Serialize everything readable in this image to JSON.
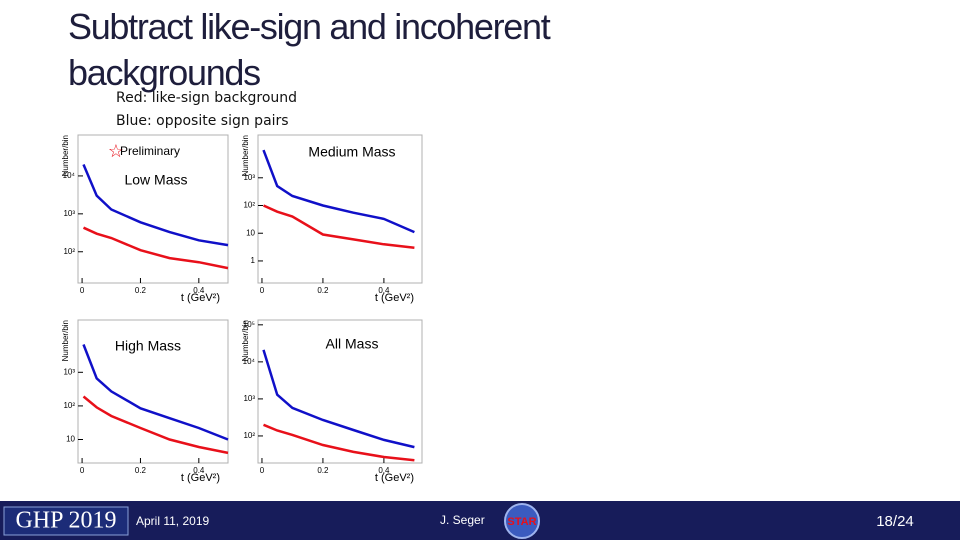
{
  "header": {
    "title": "Subtract like-sign and incoherent backgrounds"
  },
  "notes": [
    "Red:  like-sign background",
    "Blue: opposite sign pairs"
  ],
  "chart_data": [
    {
      "type": "line",
      "title": "Low Mass",
      "annotation": "Preliminary",
      "log_y": true,
      "xlabel": "t (GeV²)",
      "ylabel": "Number/bin",
      "x": [
        0.005,
        0.05,
        0.1,
        0.2,
        0.3,
        0.4,
        0.5
      ],
      "xlim": [
        -0.014,
        0.5
      ],
      "xticks": [
        0,
        0.2,
        0.4
      ],
      "ylim": [
        15,
        120000
      ],
      "yticks": [
        {
          "value": 100,
          "label": "10²"
        },
        {
          "value": 1000,
          "label": "10³"
        },
        {
          "value": 10000,
          "label": "10⁴"
        }
      ],
      "series": [
        {
          "color": "#e8101a",
          "values": [
            430,
            300,
            230,
            110,
            68,
            53,
            37
          ]
        },
        {
          "color": "#1010c8",
          "values": [
            20000,
            3000,
            1300,
            600,
            330,
            200,
            150
          ]
        }
      ]
    },
    {
      "type": "line",
      "title": "Medium Mass",
      "log_y": true,
      "xlabel": "t (GeV²)",
      "ylabel": "Number/bin",
      "x": [
        0.005,
        0.05,
        0.1,
        0.2,
        0.3,
        0.4,
        0.5
      ],
      "xlim": [
        -0.013,
        0.525
      ],
      "xticks": [
        0,
        0.2,
        0.4
      ],
      "ylim": [
        0.16,
        35000
      ],
      "yticks": [
        1,
        10,
        {
          "value": 100,
          "label": "10²"
        },
        {
          "value": 1000,
          "label": "10³"
        }
      ],
      "series": [
        {
          "color": "#e8101a",
          "values": [
            100,
            60,
            40,
            9,
            6,
            4,
            3
          ]
        },
        {
          "color": "#1010c8",
          "values": [
            10000,
            500,
            220,
            100,
            55,
            33,
            11
          ]
        }
      ]
    },
    {
      "type": "line",
      "title": "High Mass",
      "log_y": true,
      "xlabel": "t (GeV²)",
      "ylabel": "Number/bin",
      "x": [
        0.005,
        0.05,
        0.1,
        0.2,
        0.3,
        0.4,
        0.5
      ],
      "xlim": [
        -0.014,
        0.5
      ],
      "xticks": [
        0,
        0.2,
        0.4
      ],
      "ylim": [
        2,
        36000
      ],
      "yticks": [
        10,
        {
          "value": 100,
          "label": "10²"
        },
        {
          "value": 1000,
          "label": "10³"
        }
      ],
      "series": [
        {
          "color": "#e8101a",
          "values": [
            190,
            90,
            50,
            22,
            10,
            6,
            4
          ]
        },
        {
          "color": "#1010c8",
          "values": [
            6700,
            660,
            270,
            85,
            43,
            22,
            10
          ]
        }
      ]
    },
    {
      "type": "line",
      "title": "All Mass",
      "log_y": true,
      "xlabel": "t (GeV²)",
      "ylabel": "Number/bin",
      "x": [
        0.005,
        0.05,
        0.1,
        0.2,
        0.3,
        0.4,
        0.5
      ],
      "xlim": [
        -0.013,
        0.525
      ],
      "xticks": [
        0,
        0.2,
        0.4
      ],
      "ylim": [
        18.6,
        135000
      ],
      "yticks": [
        {
          "value": 100,
          "label": "10²"
        },
        {
          "value": 1000,
          "label": "10³"
        },
        {
          "value": 10000,
          "label": "10⁴"
        },
        {
          "value": 100000,
          "label": "10⁵"
        }
      ],
      "series": [
        {
          "color": "#e8101a",
          "values": [
            200,
            140,
            107,
            57,
            37,
            27,
            22
          ]
        },
        {
          "color": "#1010c8",
          "values": [
            21000,
            1300,
            570,
            270,
            145,
            78,
            50
          ]
        }
      ]
    }
  ],
  "footer": {
    "conference": "GHP 2019",
    "date": "April 11, 2019",
    "author": "J. Seger",
    "logo": "STAR",
    "page": "18/24"
  }
}
